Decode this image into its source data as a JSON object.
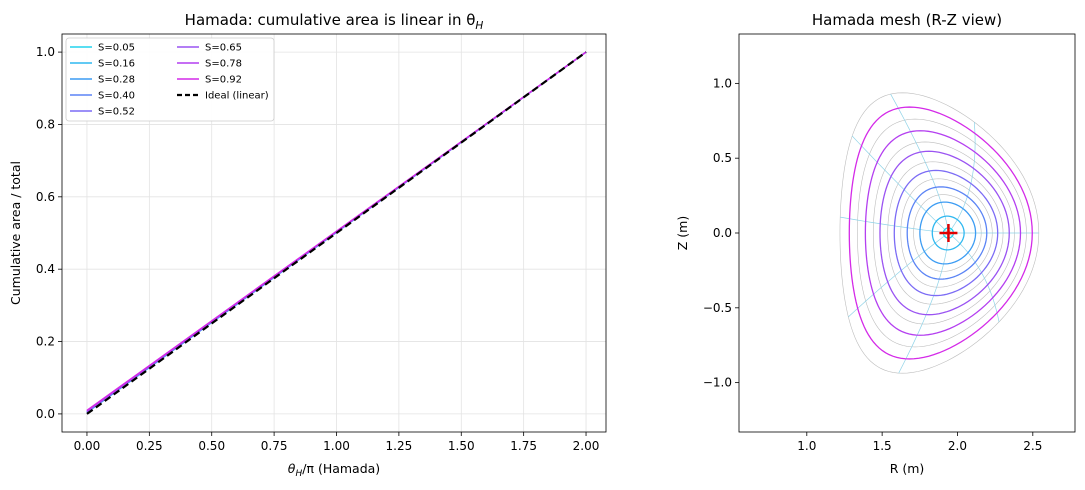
{
  "chart_data": [
    {
      "type": "line",
      "title": "Hamada: cumulative area is linear in θ",
      "title_sub": "H",
      "xlabel_main": "θ",
      "xlabel_sub": "H",
      "xlabel_rest": "/π (Hamada)",
      "ylabel": "Cumulative area / total",
      "xlim": [
        -0.1,
        2.08
      ],
      "ylim": [
        -0.05,
        1.05
      ],
      "xticks": [
        0,
        0.25,
        0.5,
        0.75,
        1.0,
        1.25,
        1.5,
        1.75,
        2.0
      ],
      "xtick_labels": [
        "0.00",
        "0.25",
        "0.50",
        "0.75",
        "1.00",
        "1.25",
        "1.50",
        "1.75",
        "2.00"
      ],
      "yticks": [
        0,
        0.2,
        0.4,
        0.6,
        0.8,
        1.0
      ],
      "ytick_labels": [
        "0.0",
        "0.2",
        "0.4",
        "0.6",
        "0.8",
        "1.0"
      ],
      "grid": true,
      "legend_position": "top-left",
      "series": [
        {
          "name": "S=0.05",
          "color": "#22d3ee",
          "x": [
            0,
            2
          ],
          "y": [
            0.004,
            1.0
          ]
        },
        {
          "name": "S=0.16",
          "color": "#2fb8f0",
          "x": [
            0,
            2
          ],
          "y": [
            0.004,
            1.0
          ]
        },
        {
          "name": "S=0.28",
          "color": "#3c9cf3",
          "x": [
            0,
            2
          ],
          "y": [
            0.004,
            1.0
          ]
        },
        {
          "name": "S=0.40",
          "color": "#5b84f5",
          "x": [
            0,
            2
          ],
          "y": [
            0.005,
            1.0
          ]
        },
        {
          "name": "S=0.52",
          "color": "#7c6cf5",
          "x": [
            0,
            2
          ],
          "y": [
            0.006,
            1.0
          ]
        },
        {
          "name": "S=0.65",
          "color": "#9a53f2",
          "x": [
            0,
            2
          ],
          "y": [
            0.007,
            1.0
          ]
        },
        {
          "name": "S=0.78",
          "color": "#b43ff0",
          "x": [
            0,
            2
          ],
          "y": [
            0.008,
            1.0
          ]
        },
        {
          "name": "S=0.92",
          "color": "#d42ae8",
          "x": [
            0,
            2
          ],
          "y": [
            0.01,
            1.0
          ]
        },
        {
          "name": "Ideal (linear)",
          "color": "#000000",
          "dashed": true,
          "x": [
            0,
            2
          ],
          "y": [
            0,
            1.0
          ]
        }
      ]
    },
    {
      "type": "line",
      "title": "Hamada mesh (R-Z view)",
      "xlabel": "R (m)",
      "ylabel": "Z (m)",
      "xlim": [
        0.55,
        2.78
      ],
      "ylim": [
        -1.33,
        1.33
      ],
      "xticks": [
        1.0,
        1.5,
        2.0,
        2.5
      ],
      "xtick_labels": [
        "1.0",
        "1.5",
        "2.0",
        "2.5"
      ],
      "yticks": [
        -1.0,
        -0.5,
        0.0,
        0.5,
        1.0
      ],
      "ytick_labels": [
        "−1.0",
        "−0.5",
        "0.0",
        "0.5",
        "1.0"
      ],
      "grid": false,
      "magnetic_axis": {
        "R": 1.94,
        "Z": 0.0,
        "color": "#e00000"
      },
      "flux_surfaces": [
        {
          "rho": 0.05,
          "color": "#22d3ee"
        },
        {
          "rho": 0.16,
          "color": "#2fb8f0"
        },
        {
          "rho": 0.28,
          "color": "#3c9cf3"
        },
        {
          "rho": 0.4,
          "color": "#5b84f5"
        },
        {
          "rho": 0.52,
          "color": "#7c6cf5"
        },
        {
          "rho": 0.65,
          "color": "#9a53f2"
        },
        {
          "rho": 0.78,
          "color": "#b43ff0"
        },
        {
          "rho": 0.92,
          "color": "#d42ae8"
        }
      ],
      "background_surfaces": {
        "rho": [
          0.34,
          0.46,
          0.58,
          0.71,
          0.85,
          1.0
        ],
        "color": "#bdbdbd"
      },
      "mesh_lines": {
        "count": 8,
        "color": "#8fd3e8"
      }
    }
  ]
}
